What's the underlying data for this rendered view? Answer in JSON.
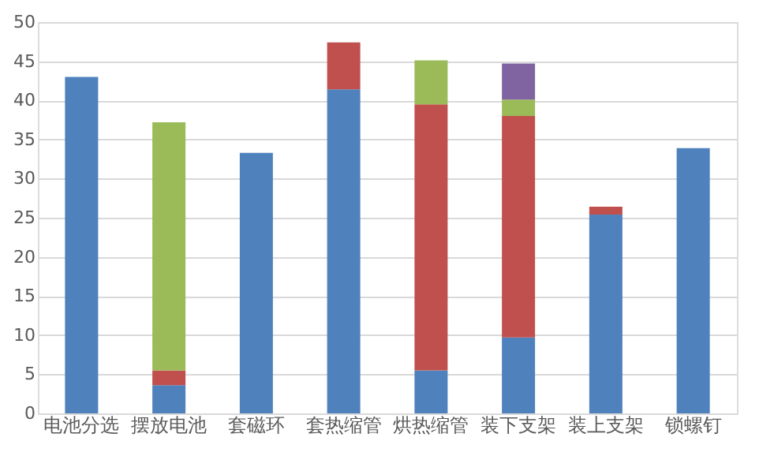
{
  "chart_data": {
    "type": "bar",
    "stacked": true,
    "categories": [
      "电池分选",
      "摆放电池",
      "套磁环",
      "套热缩管",
      "烘热缩管",
      "装下支架",
      "装上支架",
      "锁螺钉"
    ],
    "series": [
      {
        "color": "#4f81bd",
        "values": [
          43.0,
          3.6,
          33.3,
          41.4,
          5.5,
          9.7,
          25.4,
          33.9
        ]
      },
      {
        "color": "#c0504d",
        "values": [
          null,
          1.9,
          null,
          6.0,
          34.0,
          28.3,
          1.0,
          null
        ]
      },
      {
        "color": "#9bbb59",
        "values": [
          null,
          31.7,
          null,
          null,
          5.6,
          2.1,
          null,
          null
        ]
      },
      {
        "color": "#8064a2",
        "values": [
          null,
          null,
          null,
          null,
          null,
          4.6,
          null,
          null
        ]
      }
    ],
    "ylim": [
      0,
      50
    ],
    "yticks": [
      0,
      5,
      10,
      15,
      20,
      25,
      30,
      35,
      40,
      45,
      50
    ],
    "grid": "y"
  }
}
